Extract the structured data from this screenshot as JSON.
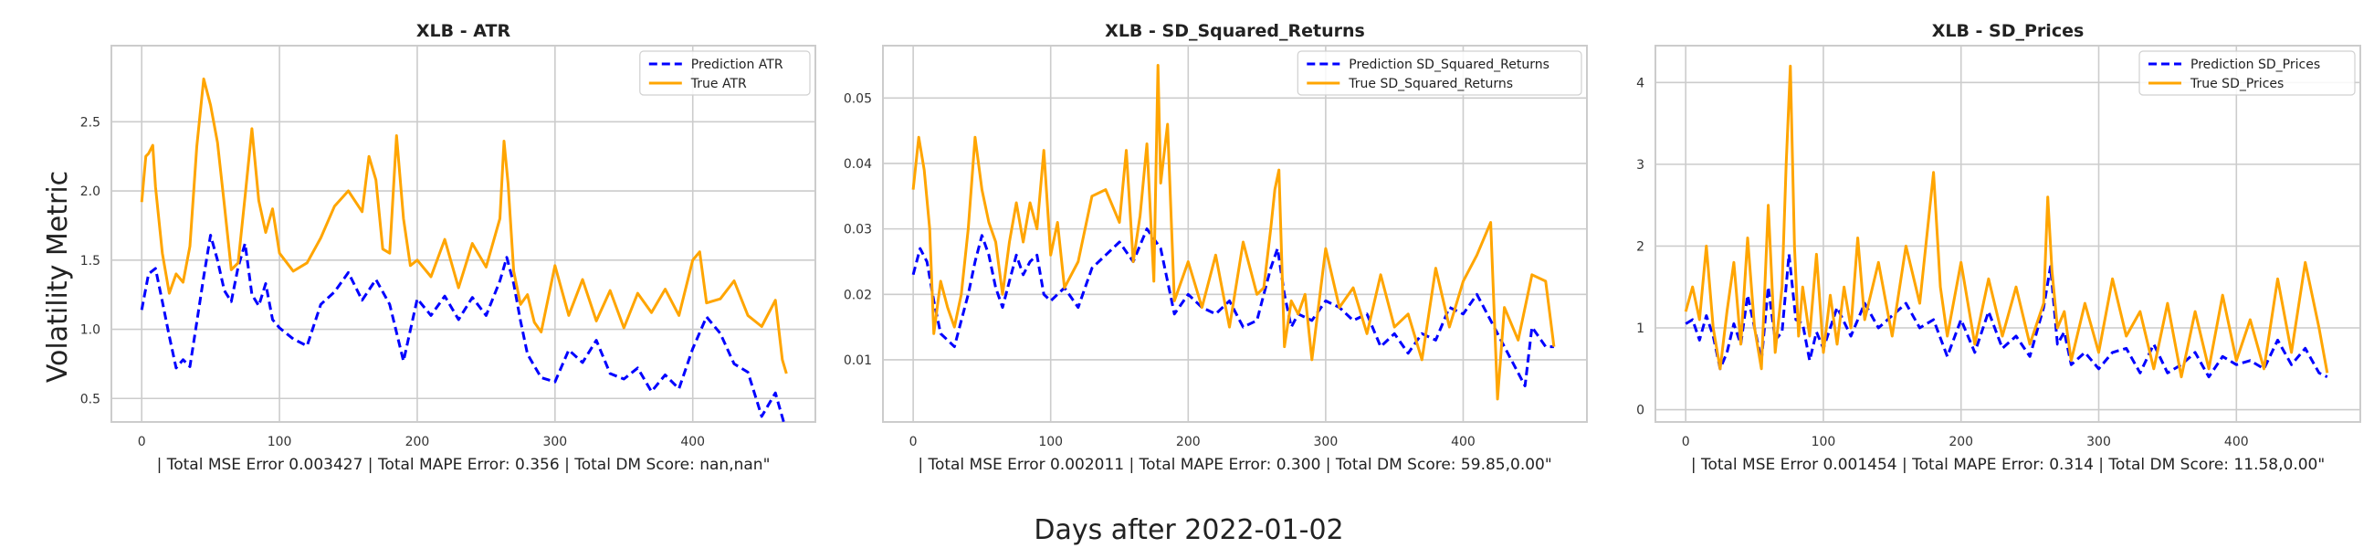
{
  "figure": {
    "supxlabel": "Days after 2022-01-02",
    "supylabel": "Volatility Metric"
  },
  "colors": {
    "prediction": "#0000ff",
    "true": "#ffa500",
    "grid": "#cccccc",
    "frame": "#cccccc"
  },
  "chart_data": [
    {
      "type": "line",
      "title": "XLB - ATR",
      "xlabel": "| Total MSE Error 0.003427 | Total MAPE Error: 0.356 | Total DM Score: nan,nan\"",
      "xlim": [
        -22,
        489
      ],
      "ylim": [
        0.33,
        3.05
      ],
      "xticks": [
        0,
        100,
        200,
        300,
        400
      ],
      "yticks": [
        0.5,
        1.0,
        1.5,
        2.0,
        2.5
      ],
      "ytick_labels": [
        "0.5",
        "1.0",
        "1.5",
        "2.0",
        "2.5"
      ],
      "series": [
        {
          "name": "Prediction ATR",
          "style": "dashed",
          "x": [
            0,
            5,
            10,
            15,
            20,
            25,
            30,
            35,
            40,
            45,
            50,
            55,
            60,
            65,
            70,
            75,
            80,
            85,
            90,
            95,
            100,
            110,
            120,
            130,
            140,
            150,
            160,
            170,
            180,
            190,
            200,
            210,
            220,
            230,
            240,
            250,
            260,
            265,
            270,
            275,
            280,
            290,
            300,
            310,
            320,
            330,
            340,
            350,
            360,
            370,
            380,
            390,
            400,
            410,
            420,
            430,
            440,
            450,
            460,
            466
          ],
          "values": [
            1.14,
            1.4,
            1.44,
            1.2,
            0.95,
            0.72,
            0.78,
            0.73,
            1.05,
            1.38,
            1.68,
            1.5,
            1.28,
            1.2,
            1.45,
            1.62,
            1.25,
            1.17,
            1.33,
            1.07,
            1.01,
            0.93,
            0.88,
            1.18,
            1.27,
            1.41,
            1.21,
            1.36,
            1.18,
            0.77,
            1.22,
            1.1,
            1.24,
            1.07,
            1.23,
            1.1,
            1.35,
            1.52,
            1.33,
            1.06,
            0.82,
            0.65,
            0.62,
            0.85,
            0.76,
            0.92,
            0.68,
            0.64,
            0.72,
            0.55,
            0.67,
            0.57,
            0.86,
            1.09,
            0.97,
            0.75,
            0.69,
            0.37,
            0.54,
            0.33
          ]
        },
        {
          "name": "True ATR",
          "style": "solid",
          "x": [
            0,
            3,
            5,
            8,
            10,
            15,
            20,
            25,
            30,
            35,
            40,
            45,
            50,
            55,
            60,
            65,
            70,
            75,
            80,
            85,
            90,
            95,
            100,
            110,
            120,
            130,
            140,
            150,
            160,
            165,
            170,
            175,
            180,
            185,
            190,
            195,
            200,
            210,
            220,
            230,
            240,
            250,
            260,
            263,
            266,
            270,
            275,
            280,
            285,
            290,
            300,
            310,
            320,
            330,
            340,
            350,
            360,
            370,
            380,
            390,
            400,
            405,
            410,
            420,
            430,
            440,
            450,
            460,
            465,
            468
          ],
          "values": [
            1.92,
            2.25,
            2.27,
            2.33,
            2.03,
            1.55,
            1.26,
            1.4,
            1.34,
            1.6,
            2.32,
            2.81,
            2.62,
            2.35,
            1.9,
            1.43,
            1.48,
            1.96,
            2.45,
            1.93,
            1.7,
            1.87,
            1.55,
            1.42,
            1.48,
            1.66,
            1.89,
            2.0,
            1.85,
            2.25,
            2.08,
            1.58,
            1.55,
            2.4,
            1.8,
            1.46,
            1.5,
            1.38,
            1.65,
            1.3,
            1.62,
            1.45,
            1.8,
            2.36,
            2.05,
            1.42,
            1.18,
            1.25,
            1.05,
            0.98,
            1.46,
            1.1,
            1.36,
            1.06,
            1.28,
            1.01,
            1.26,
            1.12,
            1.29,
            1.1,
            1.5,
            1.56,
            1.19,
            1.22,
            1.35,
            1.1,
            1.02,
            1.21,
            0.78,
            0.68
          ]
        }
      ],
      "legend": {
        "position": "upper-right",
        "entries": [
          "Prediction ATR",
          "True ATR"
        ]
      }
    },
    {
      "type": "line",
      "title": "XLB - SD_Squared_Returns",
      "xlabel": "| Total MSE Error 0.002011 | Total MAPE Error: 0.300 | Total DM Score: 59.85,0.00\"",
      "xlim": [
        -22,
        490
      ],
      "ylim": [
        0.0005,
        0.058
      ],
      "xticks": [
        0,
        100,
        200,
        300,
        400
      ],
      "yticks": [
        0.01,
        0.02,
        0.03,
        0.04,
        0.05
      ],
      "ytick_labels": [
        "0.01",
        "0.02",
        "0.03",
        "0.04",
        "0.05"
      ],
      "series": [
        {
          "name": "Prediction SD_Squared_Returns",
          "style": "dashed",
          "x": [
            0,
            5,
            10,
            15,
            20,
            25,
            30,
            35,
            40,
            45,
            50,
            55,
            60,
            65,
            70,
            75,
            80,
            85,
            90,
            95,
            100,
            110,
            120,
            130,
            140,
            150,
            160,
            170,
            180,
            190,
            200,
            210,
            220,
            230,
            240,
            250,
            260,
            265,
            270,
            275,
            280,
            290,
            300,
            310,
            320,
            330,
            340,
            350,
            360,
            370,
            380,
            390,
            400,
            410,
            420,
            430,
            440,
            445,
            450,
            460,
            466
          ],
          "values": [
            0.023,
            0.027,
            0.025,
            0.019,
            0.014,
            0.013,
            0.012,
            0.016,
            0.02,
            0.025,
            0.029,
            0.026,
            0.021,
            0.018,
            0.022,
            0.026,
            0.023,
            0.025,
            0.026,
            0.02,
            0.019,
            0.021,
            0.018,
            0.024,
            0.026,
            0.028,
            0.025,
            0.03,
            0.027,
            0.017,
            0.02,
            0.018,
            0.017,
            0.019,
            0.015,
            0.016,
            0.024,
            0.027,
            0.02,
            0.015,
            0.017,
            0.016,
            0.019,
            0.018,
            0.016,
            0.017,
            0.012,
            0.014,
            0.011,
            0.014,
            0.013,
            0.018,
            0.017,
            0.02,
            0.016,
            0.012,
            0.008,
            0.006,
            0.015,
            0.012,
            0.012
          ]
        },
        {
          "name": "True SD_Squared_Returns",
          "style": "solid",
          "x": [
            0,
            4,
            8,
            12,
            15,
            20,
            25,
            30,
            35,
            40,
            45,
            50,
            55,
            60,
            65,
            70,
            75,
            80,
            85,
            90,
            95,
            100,
            105,
            110,
            120,
            130,
            140,
            150,
            155,
            160,
            165,
            170,
            175,
            178,
            180,
            185,
            190,
            200,
            210,
            220,
            230,
            240,
            250,
            255,
            260,
            263,
            266,
            270,
            275,
            280,
            285,
            290,
            300,
            310,
            320,
            330,
            340,
            350,
            360,
            370,
            380,
            390,
            400,
            410,
            420,
            425,
            430,
            440,
            450,
            460,
            466
          ],
          "values": [
            0.036,
            0.044,
            0.039,
            0.03,
            0.014,
            0.022,
            0.018,
            0.015,
            0.02,
            0.03,
            0.044,
            0.036,
            0.031,
            0.028,
            0.02,
            0.028,
            0.034,
            0.028,
            0.034,
            0.03,
            0.042,
            0.026,
            0.031,
            0.021,
            0.025,
            0.035,
            0.036,
            0.031,
            0.042,
            0.025,
            0.032,
            0.043,
            0.022,
            0.055,
            0.037,
            0.046,
            0.019,
            0.025,
            0.018,
            0.026,
            0.015,
            0.028,
            0.02,
            0.021,
            0.03,
            0.036,
            0.039,
            0.012,
            0.019,
            0.017,
            0.02,
            0.01,
            0.027,
            0.018,
            0.021,
            0.014,
            0.023,
            0.015,
            0.017,
            0.01,
            0.024,
            0.015,
            0.022,
            0.026,
            0.031,
            0.004,
            0.018,
            0.013,
            0.023,
            0.022,
            0.012
          ]
        }
      ],
      "legend": {
        "position": "upper-right",
        "entries": [
          "Prediction SD_Squared_Returns",
          "True SD_Squared_Returns"
        ]
      }
    },
    {
      "type": "line",
      "title": "XLB - SD_Prices",
      "xlabel": "| Total MSE Error 0.001454 | Total MAPE Error: 0.314 | Total DM Score: 11.58,0.00\"",
      "xlim": [
        -22,
        490
      ],
      "ylim": [
        -0.15,
        4.45
      ],
      "xticks": [
        0,
        100,
        200,
        300,
        400
      ],
      "yticks": [
        0,
        1,
        2,
        3,
        4
      ],
      "ytick_labels": [
        "0",
        "1",
        "2",
        "3",
        "4"
      ],
      "series": [
        {
          "name": "Prediction SD_Prices",
          "style": "dashed",
          "x": [
            0,
            5,
            10,
            15,
            20,
            25,
            30,
            35,
            40,
            45,
            50,
            55,
            60,
            65,
            70,
            75,
            80,
            85,
            90,
            95,
            100,
            110,
            120,
            130,
            140,
            150,
            160,
            170,
            180,
            190,
            200,
            210,
            220,
            230,
            240,
            250,
            260,
            265,
            270,
            275,
            280,
            290,
            300,
            310,
            320,
            330,
            340,
            350,
            360,
            370,
            380,
            390,
            400,
            410,
            420,
            430,
            440,
            450,
            460,
            466
          ],
          "values": [
            1.05,
            1.1,
            0.85,
            1.15,
            0.9,
            0.5,
            0.7,
            1.05,
            0.8,
            1.4,
            1.0,
            0.6,
            1.5,
            0.85,
            0.95,
            1.9,
            1.1,
            1.05,
            0.6,
            0.95,
            0.75,
            1.25,
            0.9,
            1.3,
            1.0,
            1.15,
            1.3,
            1.0,
            1.1,
            0.65,
            1.1,
            0.7,
            1.2,
            0.75,
            0.9,
            0.65,
            1.25,
            1.75,
            0.8,
            0.95,
            0.55,
            0.7,
            0.5,
            0.7,
            0.75,
            0.45,
            0.8,
            0.45,
            0.55,
            0.7,
            0.4,
            0.65,
            0.55,
            0.6,
            0.5,
            0.85,
            0.55,
            0.75,
            0.45,
            0.4
          ]
        },
        {
          "name": "True SD_Prices",
          "style": "solid",
          "x": [
            0,
            5,
            10,
            15,
            20,
            25,
            30,
            35,
            40,
            45,
            50,
            55,
            60,
            65,
            70,
            73,
            76,
            79,
            82,
            85,
            90,
            95,
            100,
            105,
            110,
            115,
            120,
            125,
            130,
            140,
            150,
            160,
            170,
            180,
            185,
            190,
            200,
            210,
            220,
            230,
            240,
            250,
            260,
            263,
            266,
            270,
            275,
            280,
            290,
            300,
            310,
            320,
            330,
            340,
            350,
            360,
            370,
            380,
            390,
            400,
            410,
            420,
            430,
            440,
            450,
            460,
            466
          ],
          "values": [
            1.2,
            1.5,
            1.1,
            2.0,
            1.0,
            0.5,
            1.2,
            1.8,
            0.8,
            2.1,
            1.0,
            0.5,
            2.5,
            0.7,
            1.5,
            3.0,
            4.2,
            2.0,
            0.9,
            1.5,
            0.9,
            1.9,
            0.7,
            1.4,
            0.8,
            1.5,
            1.0,
            2.1,
            1.1,
            1.8,
            0.9,
            2.0,
            1.3,
            2.9,
            1.5,
            0.9,
            1.8,
            0.8,
            1.6,
            0.9,
            1.5,
            0.8,
            1.3,
            2.6,
            1.7,
            1.0,
            1.2,
            0.6,
            1.3,
            0.7,
            1.6,
            0.9,
            1.2,
            0.5,
            1.3,
            0.4,
            1.2,
            0.5,
            1.4,
            0.6,
            1.1,
            0.5,
            1.6,
            0.7,
            1.8,
            1.0,
            0.45
          ]
        }
      ],
      "legend": {
        "position": "upper-right",
        "entries": [
          "Prediction SD_Prices",
          "True SD_Prices"
        ]
      }
    }
  ]
}
